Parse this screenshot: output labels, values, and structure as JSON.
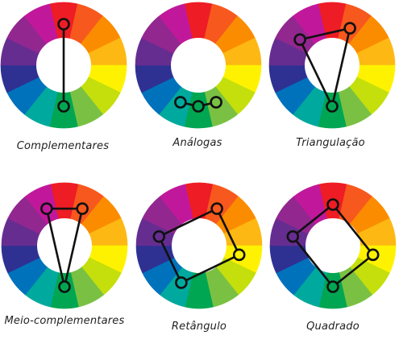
{
  "wheel_colors": [
    "#ee1c24",
    "#f7581d",
    "#fb8c00",
    "#fdb813",
    "#fff200",
    "#c4df0c",
    "#7ac143",
    "#00a651",
    "#00a99d",
    "#0072bc",
    "#2e3192",
    "#662d91",
    "#92278f",
    "#c1189b"
  ],
  "connector_color": "#111111",
  "wheels": [
    {
      "label": "Complementares",
      "scheme": "complementary",
      "points": [
        0,
        7
      ]
    },
    {
      "label": "Análogas",
      "scheme": "analogous",
      "points": [
        6,
        7,
        8
      ]
    },
    {
      "label": "Triangulação",
      "scheme": "triad",
      "points": [
        1,
        7,
        12
      ]
    },
    {
      "label": "Meio-complementares",
      "scheme": "split-complementary",
      "points": [
        1,
        7,
        13
      ]
    },
    {
      "label": "Retângulo",
      "scheme": "rectangle",
      "points": [
        1,
        4,
        8,
        11
      ]
    },
    {
      "label": "Quadrado",
      "scheme": "square",
      "points": [
        0,
        4,
        7,
        11
      ]
    }
  ]
}
